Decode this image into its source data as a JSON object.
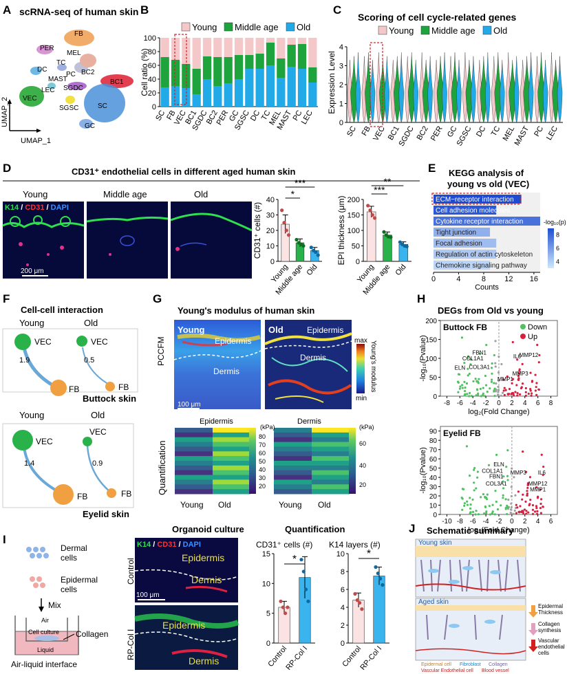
{
  "colors": {
    "young": "#f4c7c8",
    "middle": "#1fa33c",
    "old": "#22a9e8",
    "red": "#d62027",
    "green": "#2ab24a",
    "teal": "#3a8fb7"
  },
  "panels": {
    "A": "A",
    "B": "B",
    "C": "C",
    "D": "D",
    "E": "E",
    "F": "F",
    "G": "G",
    "H": "H",
    "I": "I",
    "J": "J"
  },
  "A": {
    "title": "scRNA-seq of human skin",
    "xlabel": "UMAP_1",
    "ylabel": "UMAP_2",
    "clusters": [
      "FB",
      "PER",
      "MEL",
      "DC",
      "TC",
      "PC",
      "BC2",
      "MAST",
      "BC1",
      "LEC",
      "VEC",
      "SGDC",
      "SGSC",
      "SC",
      "GC"
    ]
  },
  "legend": {
    "young": "Young",
    "middle": "Middle age",
    "old": "Old"
  },
  "chart_data": [
    {
      "panel": "B",
      "type": "bar",
      "stacked": true,
      "ylabel": "Cell ratio (%)",
      "ylim": [
        0,
        100
      ],
      "yticks": [
        0,
        20,
        40,
        60,
        80,
        100
      ],
      "categories": [
        "SC",
        "FB",
        "VEC",
        "BC1",
        "SGDC",
        "BC2",
        "PER",
        "GC",
        "SGSC",
        "DC",
        "TC",
        "MEL",
        "MAST",
        "PC",
        "LEC"
      ],
      "series": [
        {
          "name": "Old",
          "values": [
            28,
            30,
            27,
            18,
            40,
            30,
            34,
            40,
            55,
            55,
            60,
            42,
            58,
            55,
            35
          ]
        },
        {
          "name": "Middle age",
          "values": [
            44,
            38,
            35,
            37,
            33,
            42,
            38,
            35,
            20,
            22,
            33,
            28,
            32,
            36,
            22
          ]
        },
        {
          "name": "Young",
          "values": [
            28,
            32,
            38,
            45,
            27,
            28,
            28,
            25,
            25,
            23,
            7,
            30,
            10,
            9,
            43
          ]
        }
      ]
    },
    {
      "panel": "C",
      "type": "violin",
      "title": "Scoring of cell cycle-related genes",
      "ylabel": "Expression Level",
      "ylim": [
        0,
        4
      ],
      "yticks": [
        0,
        1,
        2,
        3,
        4
      ],
      "categories": [
        "SC",
        "FB",
        "VEC",
        "BC1",
        "SGDC",
        "BC2",
        "PER",
        "GC",
        "SGSC",
        "DC",
        "TC",
        "MEL",
        "MAST",
        "PC",
        "LEC"
      ],
      "series_names": [
        "Young",
        "Middle age",
        "Old"
      ]
    },
    {
      "panel": "D-cells",
      "type": "bar",
      "ylabel": "CD31⁺ cells (#)",
      "ylim": [
        0,
        40
      ],
      "yticks": [
        0,
        10,
        20,
        30,
        40
      ],
      "categories": [
        "Young",
        "Middle age",
        "Old"
      ],
      "values": [
        24,
        12,
        7
      ],
      "errors": [
        6,
        2.5,
        2
      ],
      "points": [
        [
          33,
          25,
          20,
          17
        ],
        [
          14,
          12,
          11,
          10
        ],
        [
          9,
          7,
          6,
          4
        ]
      ],
      "sig": [
        "*",
        "***"
      ]
    },
    {
      "panel": "D-epi",
      "type": "bar",
      "ylabel": "EPI thickness (μm)",
      "ylim": [
        0,
        200
      ],
      "yticks": [
        0,
        50,
        100,
        150,
        200
      ],
      "categories": [
        "Young",
        "Middle age",
        "Old"
      ],
      "values": [
        160,
        85,
        55
      ],
      "errors": [
        18,
        10,
        8
      ],
      "points": [
        [
          180,
          165,
          150,
          140
        ],
        [
          95,
          85,
          80,
          78
        ],
        [
          62,
          55,
          50,
          48
        ]
      ],
      "sig": [
        "***",
        "**"
      ]
    },
    {
      "panel": "E",
      "type": "bar",
      "orientation": "horizontal",
      "title": "KEGG analysis of young vs old (VEC)",
      "xlabel": "Counts",
      "xlim": [
        0,
        17
      ],
      "xticks": [
        0,
        4,
        8,
        12,
        16
      ],
      "categories": [
        "ECM−receptor interaction",
        "Cell adhesion molecules",
        "Cytokine receptor interaction",
        "Tight junction",
        "Focal adhesion",
        "Regulation of actin cytoskeleton",
        "Chemokine signaling pathway"
      ],
      "values": [
        14,
        10,
        17,
        9,
        10,
        10,
        9
      ],
      "neglog10p": [
        9,
        8.5,
        7.5,
        5,
        4.5,
        4,
        3.5
      ],
      "colorbar": {
        "label": "-log₁₀(p)",
        "ticks": [
          4,
          6,
          8
        ]
      }
    },
    {
      "panel": "H-buttock",
      "type": "scatter",
      "title": "Buttock FB",
      "xlabel": "log₂(Fold Change)",
      "ylabel": "-log₁₀(Pvalue)",
      "xlim": [
        -9,
        9
      ],
      "ylim": [
        0,
        200
      ],
      "xticks": [
        -8,
        -6,
        -4,
        -2,
        0,
        2,
        4,
        6,
        8
      ],
      "yticks": [
        0,
        50,
        100,
        150,
        200
      ],
      "legend": [
        "Down",
        "Up"
      ],
      "labels": [
        "FBN1",
        "COL1A1",
        "COL3A1",
        "ELN",
        "IL6",
        "MMP12",
        "MMP3",
        "MMP1"
      ]
    },
    {
      "panel": "H-eyelid",
      "type": "scatter",
      "title": "Eyelid FB",
      "xlabel": "log₂(Fold Change)",
      "ylabel": "-log₁₀(Pvalue)",
      "xlim": [
        -11,
        7
      ],
      "ylim": [
        0,
        95
      ],
      "xticks": [
        -10,
        -8,
        -6,
        -4,
        -2,
        0,
        2,
        4,
        6
      ],
      "yticks": [
        0,
        10,
        20,
        30,
        40,
        50,
        60,
        70,
        80,
        90
      ],
      "labels": [
        "ELN",
        "COL1A1",
        "FBN1",
        "COL3A1",
        "MMP3",
        "IL6",
        "MMP12",
        "MMP1"
      ]
    },
    {
      "panel": "I-cd31",
      "type": "bar",
      "title": "CD31⁺ cells (#)",
      "ylim": [
        0,
        15
      ],
      "yticks": [
        0,
        5,
        10,
        15
      ],
      "categories": [
        "Control",
        "RP-Col I"
      ],
      "values": [
        6,
        11
      ],
      "errors": [
        1,
        3.5
      ],
      "points": [
        [
          7,
          6,
          5,
          6
        ],
        [
          14,
          12,
          9,
          7
        ]
      ],
      "sig": [
        "*"
      ]
    },
    {
      "panel": "I-k14",
      "type": "bar",
      "title": "K14 layers (#)",
      "ylim": [
        0,
        10
      ],
      "yticks": [
        0,
        2,
        4,
        6,
        8,
        10
      ],
      "categories": [
        "Control",
        "RP-Col I"
      ],
      "values": [
        4.8,
        7.5
      ],
      "errors": [
        0.8,
        1
      ],
      "points": [
        [
          5.5,
          4.8,
          4.5,
          3.8
        ],
        [
          8.5,
          7.8,
          7.2,
          6.5
        ]
      ],
      "sig": [
        "*"
      ]
    }
  ],
  "B_title": "B",
  "C_legend": [
    "Young",
    "Middle age",
    "Old"
  ],
  "D": {
    "title": "CD31⁺ endothelial cells in different aged human skin",
    "cols": [
      "Young",
      "Middle age",
      "Old"
    ],
    "stain": {
      "k14": "K14",
      "slash1": " / ",
      "cd31": "CD31",
      "slash2": " / ",
      "dapi": "DAPI"
    },
    "scale": "200 μm"
  },
  "F": {
    "title": "Cell-cell interaction",
    "buttock": {
      "young": "Young",
      "old": "Old",
      "vec": "VEC",
      "fb": "FB",
      "w_young": "1.9",
      "w_old": "0.5",
      "label": "Buttock skin"
    },
    "eyelid": {
      "young": "Young",
      "old": "Old",
      "vec": "VEC",
      "fb": "FB",
      "w_young": "1.4",
      "w_old": "0.9",
      "label": "Eyelid skin"
    }
  },
  "G": {
    "title": "Young's modulus of human skin",
    "young": "Young",
    "old": "Old",
    "epidermis": "Epidermis",
    "dermis": "Dermis",
    "method": "PCCFM",
    "scale": "100 μm",
    "cbar_max": "max",
    "cbar_min": "min",
    "cbar_label": "Young's modulus",
    "quant": "Quantification",
    "epi_title": "Epidermis",
    "der_title": "Dermis",
    "unit": "(kPa)",
    "epi_ticks": [
      "80",
      "70",
      "60",
      "50",
      "40",
      "30",
      "20"
    ],
    "der_ticks": [
      "60",
      "40",
      "20"
    ],
    "xcat": [
      "Young",
      "Old"
    ]
  },
  "H": {
    "title": "DEGs from Old vs young"
  },
  "I": {
    "dermal": "Dermal cells",
    "epidermal": "Epidermal cells",
    "mix": "Mix",
    "air": "Air",
    "culture": "Cell culture",
    "liquid": "Liquid",
    "collagen": "Collagen",
    "interface": "Air-liquid interface",
    "organoid": "Organoid culture",
    "quant": "Quantification",
    "control": "Control",
    "rp": "RP-Col I",
    "epidermis": "Epidermis",
    "dermis": "Dermis",
    "scale": "100 μm",
    "stain": {
      "k14": "K14",
      "cd31": "CD31",
      "dapi": "DAPI"
    }
  },
  "J": {
    "title": "Schematic summary",
    "young": "Young skin",
    "aged": "Aged skin",
    "epi": "Epidermal Thickness",
    "coll": "Collagen synthesis",
    "vasc": "Vascular endothelial cells",
    "leg1": "Epidermal cell",
    "leg2": "Fibroblast",
    "leg3": "Collagen",
    "leg4": "Vascular Endothelial cell",
    "leg5": "Blood vessel"
  }
}
